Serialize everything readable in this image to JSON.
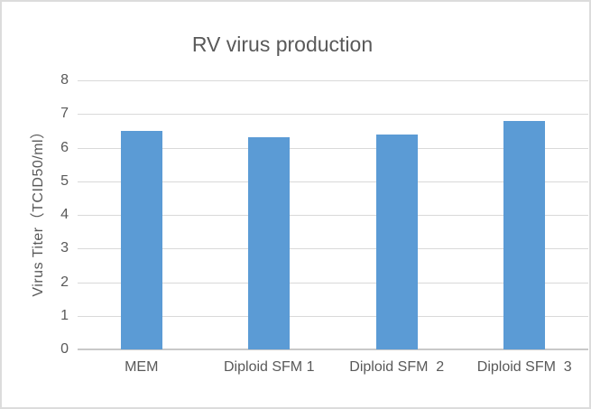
{
  "chart_data": {
    "type": "bar",
    "title": "RV virus production",
    "categories": [
      "MEM",
      "Diploid SFM 1",
      "Diploid SFM  2",
      "Diploid SFM  3"
    ],
    "values": [
      6.5,
      6.3,
      6.4,
      6.8
    ],
    "xlabel": "",
    "ylabel": "Virus Titer（TCID50/ml）",
    "ylim": [
      0,
      8
    ],
    "ytick_step": 1,
    "yticks": [
      0,
      1,
      2,
      3,
      4,
      5,
      6,
      7,
      8
    ],
    "grid": true,
    "legend": false,
    "colors": {
      "bar": "#5B9BD5",
      "gridline": "#D9D9D9",
      "axis_line": "#C9C9C9",
      "text": "#595959",
      "border": "#DCDCDC",
      "background": "#FFFFFF"
    }
  }
}
